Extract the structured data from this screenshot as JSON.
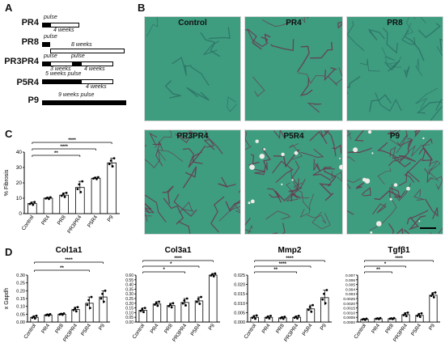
{
  "panels": {
    "A": "A",
    "B": "B",
    "C": "C",
    "D": "D"
  },
  "panelA": {
    "rows": [
      {
        "label": "PR4",
        "top_text": "pulse",
        "bottom_text": "4 weeks"
      },
      {
        "label": "PR8",
        "top_text": "pulse",
        "bottom_text": "8 weeks"
      },
      {
        "label": "PR3PR4",
        "top_text": "pulse",
        "mid_text": "pulse",
        "bottom_left": "3 weeks",
        "bottom_right": "4 weeks"
      },
      {
        "label": "P5R4",
        "top_text": "5 weeks pulse",
        "bottom_text": "4 weeks"
      },
      {
        "label": "P9",
        "top_text": "9 weeks pulse"
      }
    ]
  },
  "panelB": {
    "images": [
      "Control",
      "PR4",
      "PR8",
      "PR3PR4",
      "P5R4",
      "P9"
    ],
    "colors": {
      "tissue": "#3e9c7f",
      "tissue_dark": "#2a6e63",
      "fibrosis": "#6b2f4a",
      "mark": "#d43a3a"
    }
  },
  "chart_data": [
    {
      "type": "bar",
      "panel": "C",
      "categories": [
        "Control",
        "PR4",
        "PR8",
        "PR3PR4",
        "P5R4",
        "P9"
      ],
      "values": [
        6.5,
        10,
        12,
        17,
        23,
        33
      ],
      "errors": [
        1,
        0.6,
        1.5,
        4,
        0.7,
        3
      ],
      "ylabel": "% Fibrosis",
      "ylim": [
        0,
        40
      ],
      "yticks": [
        "0",
        "10",
        "20",
        "30",
        "40"
      ],
      "significance": [
        {
          "from": "Control",
          "to": "P9",
          "stars": "****"
        },
        {
          "from": "Control",
          "to": "P5R4",
          "stars": "****"
        },
        {
          "from": "Control",
          "to": "PR3PR4",
          "stars": "**"
        }
      ]
    },
    {
      "type": "bar",
      "panel": "D",
      "title": "Col1a1",
      "categories": [
        "Control",
        "PR4",
        "PR8",
        "PR3PR4",
        "P5R4",
        "P9"
      ],
      "values": [
        0.03,
        0.045,
        0.05,
        0.08,
        0.12,
        0.16
      ],
      "errors": [
        0.01,
        0.005,
        0.005,
        0.015,
        0.04,
        0.04
      ],
      "ylabel": "x Gapdh",
      "ylim": [
        0,
        0.3
      ],
      "yticks": [
        "0.00",
        "0.05",
        "0.10",
        "0.15",
        "0.20",
        "0.25",
        "0.30"
      ],
      "significance": [
        {
          "from": "Control",
          "to": "P9",
          "stars": "****"
        },
        {
          "from": "Control",
          "to": "P5R4",
          "stars": "**"
        }
      ]
    },
    {
      "type": "bar",
      "panel": "D",
      "title": "Col3a1",
      "categories": [
        "Control",
        "PR4",
        "PR8",
        "PR3PR4",
        "P5R4",
        "P9"
      ],
      "values": [
        0.15,
        0.23,
        0.21,
        0.25,
        0.27,
        0.6
      ],
      "errors": [
        0.03,
        0.03,
        0.03,
        0.05,
        0.05,
        0.02
      ],
      "ylim": [
        0,
        0.6
      ],
      "yticks": [
        "0.00",
        "0.05",
        "0.10",
        "0.15",
        "0.20",
        "0.25",
        "0.30",
        "0.35",
        "0.40",
        "0.55",
        "0.60"
      ],
      "significance": [
        {
          "from": "Control",
          "to": "P9",
          "stars": "****"
        },
        {
          "from": "Control",
          "to": "P5R4",
          "stars": "*"
        },
        {
          "from": "Control",
          "to": "PR3PR4",
          "stars": "*"
        }
      ]
    },
    {
      "type": "bar",
      "panel": "D",
      "title": "Mmp2",
      "categories": [
        "Control",
        "PR4",
        "PR8",
        "PR3PR4",
        "P5R4",
        "P9"
      ],
      "values": [
        0.0025,
        0.0025,
        0.0022,
        0.0025,
        0.007,
        0.013
      ],
      "errors": [
        0.001,
        0.0008,
        0.0006,
        0.0008,
        0.002,
        0.004
      ],
      "ylim": [
        0,
        0.025
      ],
      "yticks": [
        "0.000",
        "0.005",
        "0.010",
        "0.015",
        "0.020",
        "0.025"
      ],
      "significance": [
        {
          "from": "Control",
          "to": "P9",
          "stars": "****"
        },
        {
          "from": "Control",
          "to": "P5R4",
          "stars": "****"
        },
        {
          "from": "Control",
          "to": "PR3PR4",
          "stars": "**"
        }
      ]
    },
    {
      "type": "bar",
      "panel": "D",
      "title": "Tgfβ1",
      "categories": [
        "Control",
        "PR4",
        "PR8",
        "PR3PR4",
        "P5R4",
        "P9"
      ],
      "values": [
        0.0004,
        0.0005,
        0.0005,
        0.0011,
        0.001,
        0.004
      ],
      "errors": [
        0.0001,
        8e-05,
        8e-05,
        0.0003,
        0.0003,
        0.0004
      ],
      "ylim": [
        0,
        0.007
      ],
      "yticks": [
        "0.0000",
        "0.0005",
        "0.0010",
        "0.0015",
        "0.0020",
        "0.0025",
        "0.003",
        "0.004",
        "0.005",
        "0.006",
        "0.007"
      ],
      "significance": [
        {
          "from": "Control",
          "to": "P9",
          "stars": "****"
        },
        {
          "from": "Control",
          "to": "PR3PR4",
          "stars": "*"
        },
        {
          "from": "Control",
          "to": "PR8",
          "stars": "**"
        }
      ]
    }
  ]
}
